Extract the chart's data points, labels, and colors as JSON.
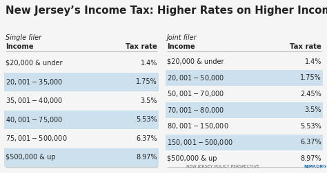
{
  "title": "New Jersey’s Income Tax: Higher Rates on Higher Income",
  "background_color": "#f5f5f5",
  "highlight_color": "#cce0ee",
  "single_filer_label": "Single filer",
  "joint_filer_label": "Joint filer",
  "income_header": "Income",
  "tax_rate_header": "Tax rate",
  "single_rows": [
    {
      "income": "$20,000 & under",
      "rate": "1.4%",
      "highlight": false
    },
    {
      "income": "$20,001 - $35,000",
      "rate": "1.75%",
      "highlight": true
    },
    {
      "income": "$35,001 - $40,000",
      "rate": "3.5%",
      "highlight": false
    },
    {
      "income": "$40,001 - $75,000",
      "rate": "5.53%",
      "highlight": true
    },
    {
      "income": "$75,001 - $500,000",
      "rate": "6.37%",
      "highlight": false
    },
    {
      "income": "$500,000 & up",
      "rate": "8.97%",
      "highlight": true
    }
  ],
  "joint_rows": [
    {
      "income": "$20,000 & under",
      "rate": "1.4%",
      "highlight": false
    },
    {
      "income": "$20,001 - $50,000",
      "rate": "1.75%",
      "highlight": true
    },
    {
      "income": "$50,001 - $70,000",
      "rate": "2.45%",
      "highlight": false
    },
    {
      "income": "$70,001 - $80,000",
      "rate": "3.5%",
      "highlight": true
    },
    {
      "income": "$80,001 - $150,000",
      "rate": "5.53%",
      "highlight": false
    },
    {
      "income": "$150,001 - $500,000",
      "rate": "6.37%",
      "highlight": true
    },
    {
      "income": "$500,000 & up",
      "rate": "8.97%",
      "highlight": false
    }
  ],
  "footer_left": "NEW JERSEY POLICY PERSPECTIVE",
  "footer_right": "NJPP.ORG",
  "footer_color_left": "#666666",
  "footer_color_right": "#1a6fae",
  "text_color": "#222222",
  "divider_color": "#aaaaaa"
}
